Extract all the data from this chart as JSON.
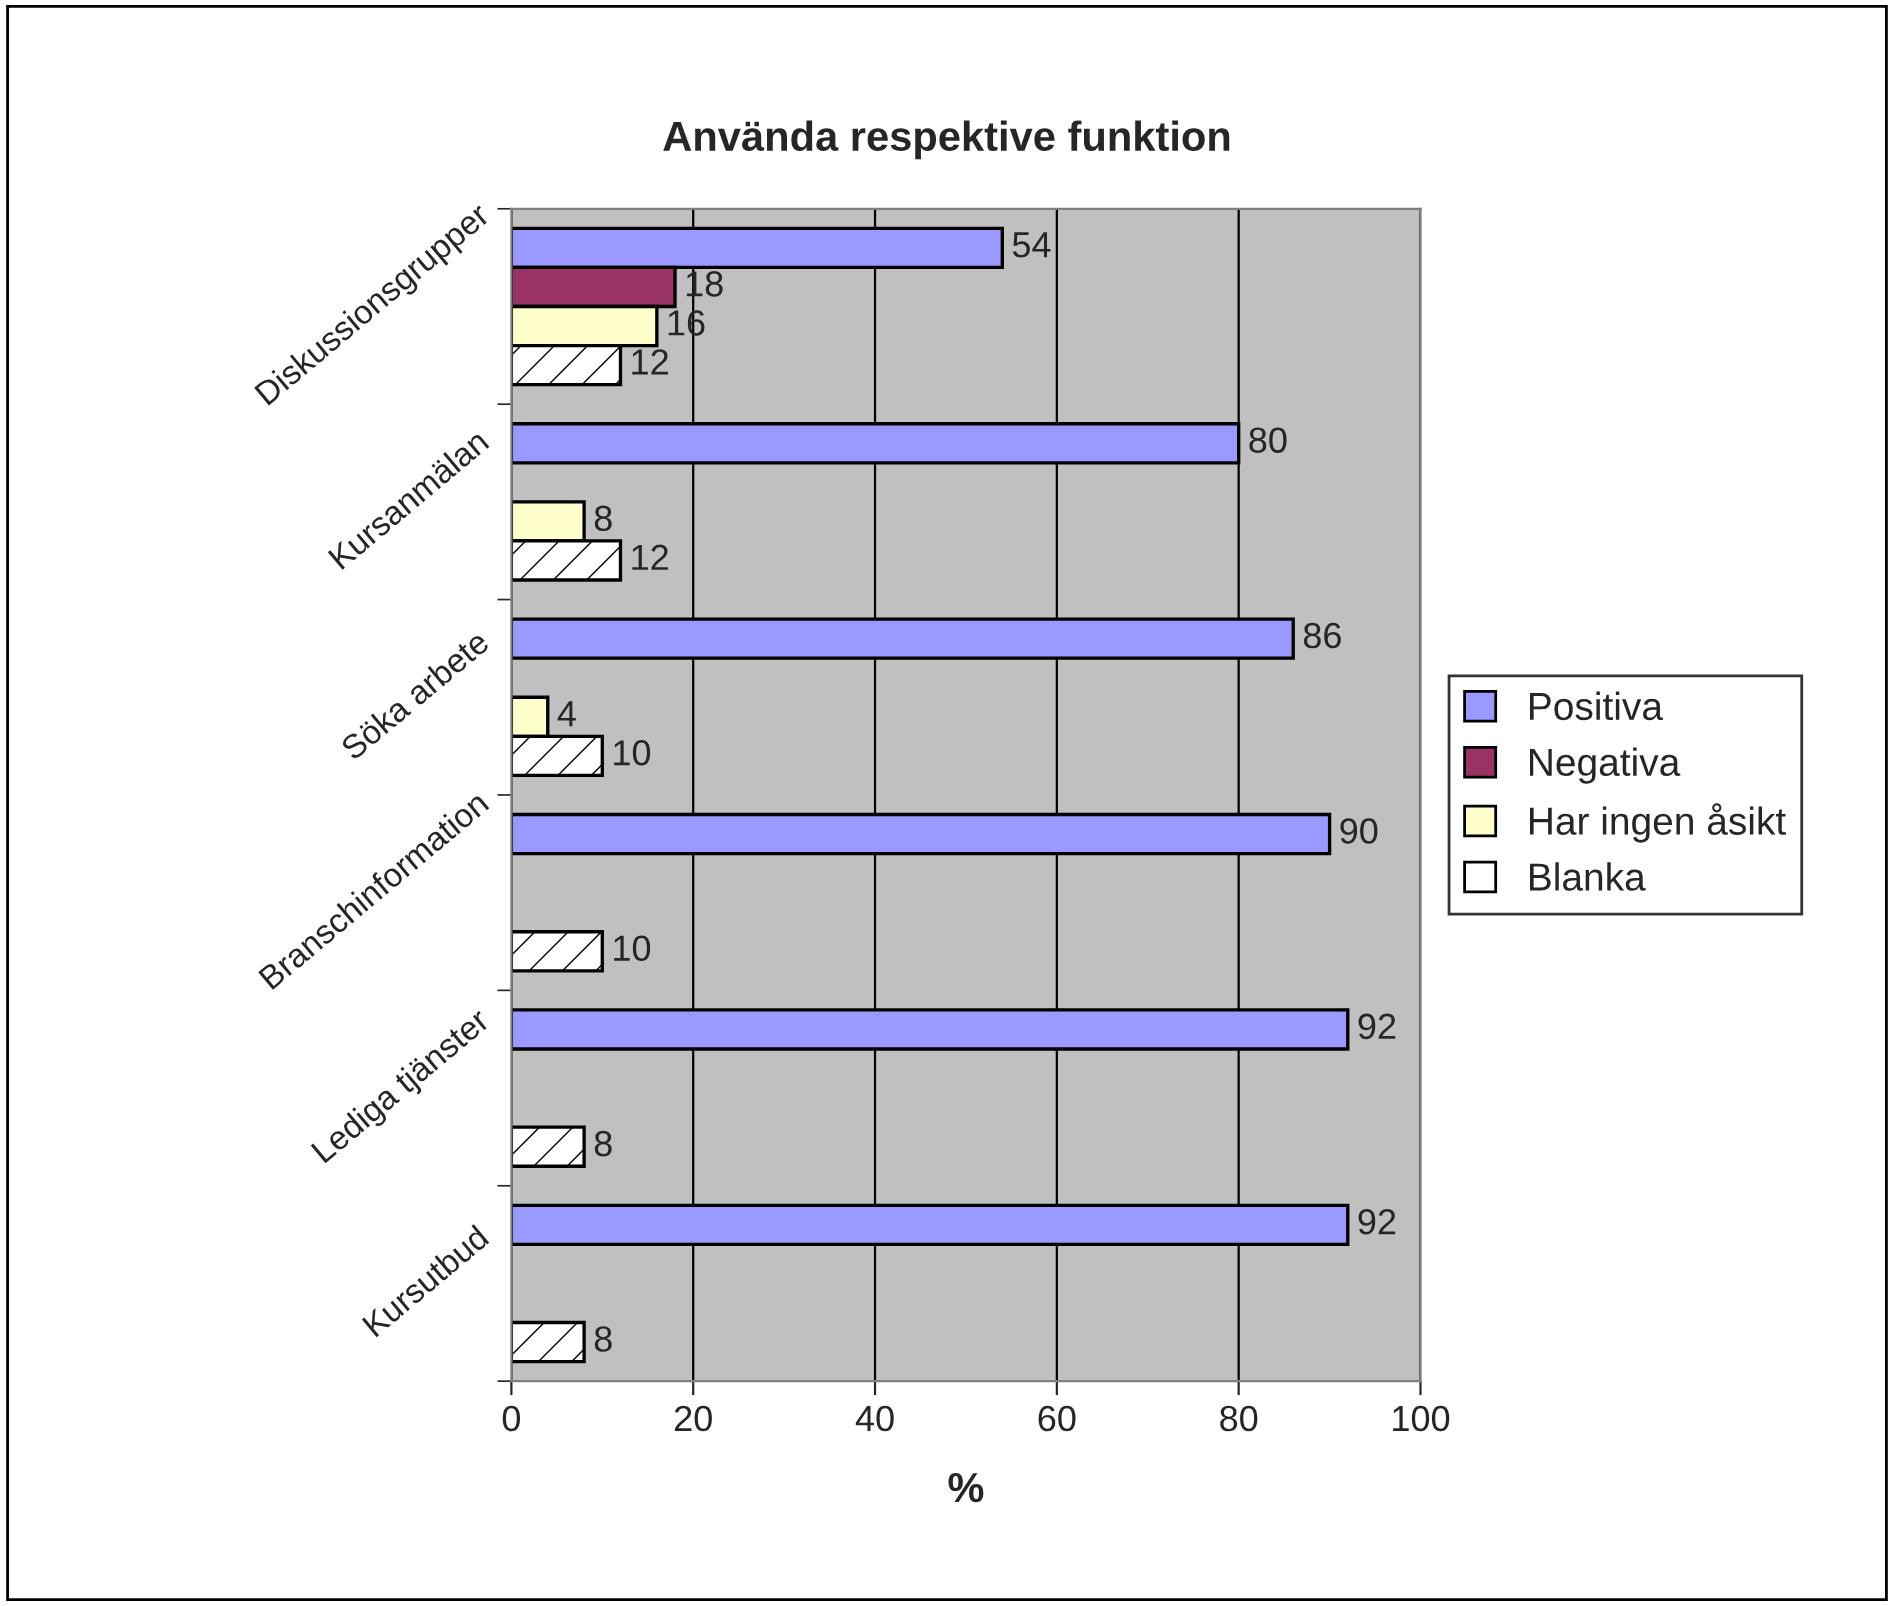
{
  "chart_data": {
    "type": "bar",
    "orientation": "horizontal",
    "title": "Använda respektive funktion",
    "xlabel": "%",
    "categories": [
      "Diskussionsgrupper",
      "Kursanmälan",
      "Söka arbete",
      "Branschinformation",
      "Lediga tjänster",
      "Kursutbud"
    ],
    "series": [
      {
        "name": "Positiva",
        "color": "#9999ff",
        "values": [
          54,
          80,
          86,
          90,
          92,
          92
        ]
      },
      {
        "name": "Negativa",
        "color": "#993366",
        "values": [
          18,
          null,
          null,
          null,
          null,
          null
        ]
      },
      {
        "name": "Har ingen åsikt",
        "color": "#ffffcc",
        "values": [
          16,
          8,
          4,
          null,
          null,
          null
        ]
      },
      {
        "name": "Blanka",
        "color": "#ffffff",
        "values": [
          12,
          12,
          10,
          10,
          8,
          8
        ]
      }
    ],
    "xlim": [
      0,
      100
    ],
    "xticks": [
      0,
      20,
      40,
      60,
      80,
      100
    ],
    "grid": "x",
    "legend": "right",
    "data_labels": true
  }
}
